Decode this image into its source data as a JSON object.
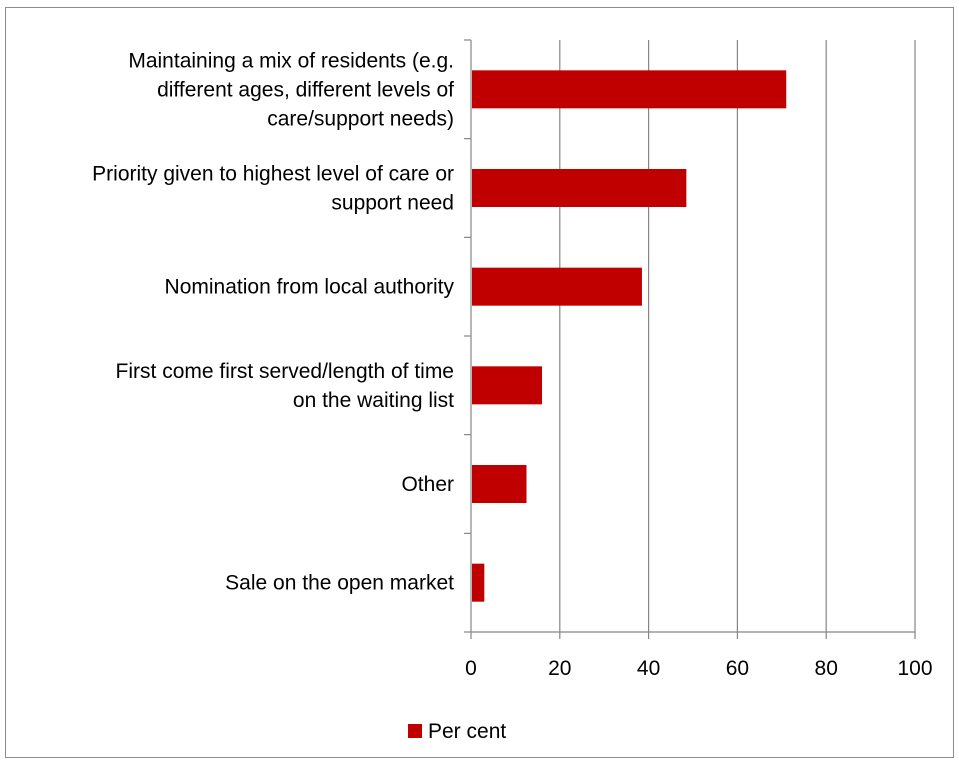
{
  "chart_data": {
    "type": "bar",
    "orientation": "horizontal",
    "categories": [
      [
        "Maintaining a mix of residents (e.g.",
        "different ages, different levels of",
        "care/support needs)"
      ],
      [
        "Priority given to highest level of care or",
        "support need"
      ],
      [
        "Nomination from local authority"
      ],
      [
        "First come first served/length of time",
        "on the waiting list"
      ],
      [
        "Other"
      ],
      [
        "Sale on the open market"
      ]
    ],
    "series": [
      {
        "name": "Per cent",
        "color": "#c00000",
        "values": [
          71,
          48.5,
          38.5,
          16,
          12.5,
          3
        ]
      }
    ],
    "xlim": [
      0,
      100
    ],
    "xticks": [
      "0",
      "20",
      "40",
      "60",
      "80",
      "100"
    ],
    "grid": "vertical major gridlines",
    "legend_position": "bottom"
  }
}
